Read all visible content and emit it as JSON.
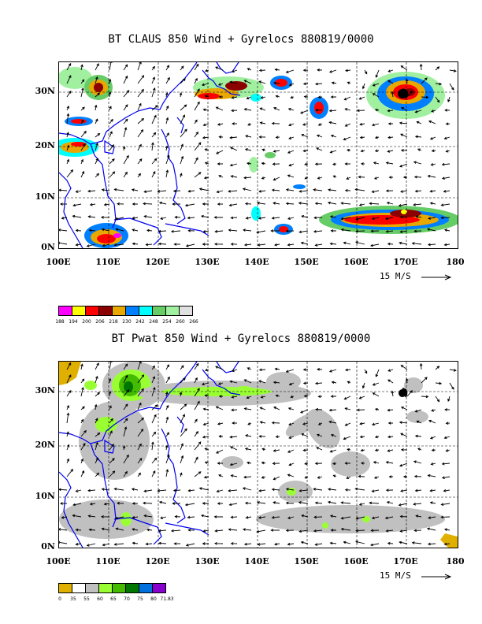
{
  "panel1": {
    "title": "BT CLAUS 850 Wind + Gyrelocs 880819/0000",
    "lat_labels": [
      "30N",
      "20N",
      "10N",
      "0N"
    ],
    "lon_labels": [
      "100E",
      "110E",
      "120E",
      "130E",
      "140E",
      "150E",
      "160E",
      "170E",
      "180"
    ],
    "scale_label": "15 M/S",
    "legend": {
      "colors": [
        "#ff00ff",
        "#ffff00",
        "#ff0000",
        "#8b0000",
        "#e8a800",
        "#0080ff",
        "#00ffff",
        "#66cc66",
        "#a0f0a0",
        "#e0e0e0"
      ],
      "labels": [
        "188",
        "194",
        "200",
        "206",
        "218",
        "230",
        "242",
        "248",
        "254",
        "260",
        "266"
      ]
    }
  },
  "panel2": {
    "title": "BT Pwat 850 Wind + Gyrelocs 880819/0000",
    "lat_labels": [
      "30N",
      "20N",
      "10N",
      "0N"
    ],
    "lon_labels": [
      "100E",
      "110E",
      "120E",
      "130E",
      "140E",
      "150E",
      "160E",
      "170E",
      "180"
    ],
    "scale_label": "15 M/S",
    "legend": {
      "colors": [
        "#e0b000",
        "#ffffff",
        "#c0c0c0",
        "#99ff33",
        "#44bb00",
        "#007700",
        "#0070dd",
        "#8800cc"
      ],
      "labels": [
        "0",
        "35",
        "55",
        "60",
        "65",
        "70",
        "75",
        "80",
        "71.83"
      ]
    }
  }
}
